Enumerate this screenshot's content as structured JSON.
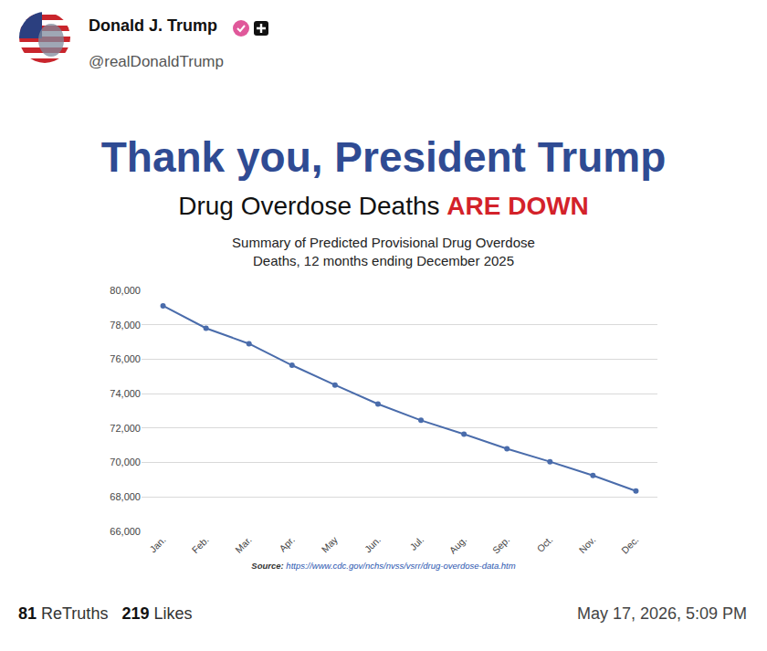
{
  "post": {
    "name": "Donald J. Trump",
    "handle": "@realDonaldTrump",
    "retruths": "81",
    "retruths_label": "ReTruths",
    "likes": "219",
    "likes_label": "Likes",
    "timestamp": "May 17, 2026, 5:09 PM"
  },
  "chart_data": {
    "type": "line",
    "title": "Thank you, President Trump",
    "subtitle": "Drug Overdose Deaths",
    "subtitle_emphasis": "ARE DOWN",
    "chart_title": "Summary of Predicted Provisional Drug Overdose Deaths, 12 months ending December 2025",
    "source": "Source: https://www.cdc.gov/nchs/nvss/vsrr/drug-overdose-data.htm",
    "categories": [
      "Jan.",
      "Feb.",
      "Mar.",
      "Apr.",
      "May",
      "Jun.",
      "Jul.",
      "Aug.",
      "Sep.",
      "Oct.",
      "Nov.",
      "Dec."
    ],
    "values": [
      79100,
      77800,
      76900,
      75650,
      74500,
      73400,
      72450,
      71650,
      70800,
      70050,
      69250,
      68350
    ],
    "color": "#4a6cab",
    "marker": "circle",
    "line_style": "solid",
    "ylim": [
      66000,
      80000
    ],
    "yticks": [
      {
        "value": 66000,
        "label": "66,000"
      },
      {
        "value": 68000,
        "label": "68,000"
      },
      {
        "value": 70000,
        "label": "70,000"
      },
      {
        "value": 72000,
        "label": "72,000"
      },
      {
        "value": 74000,
        "label": "74,000"
      },
      {
        "value": 76000,
        "label": "76,000"
      },
      {
        "value": 78000,
        "label": "78,000"
      },
      {
        "value": 80000,
        "label": "80,000"
      }
    ],
    "grid": true
  }
}
